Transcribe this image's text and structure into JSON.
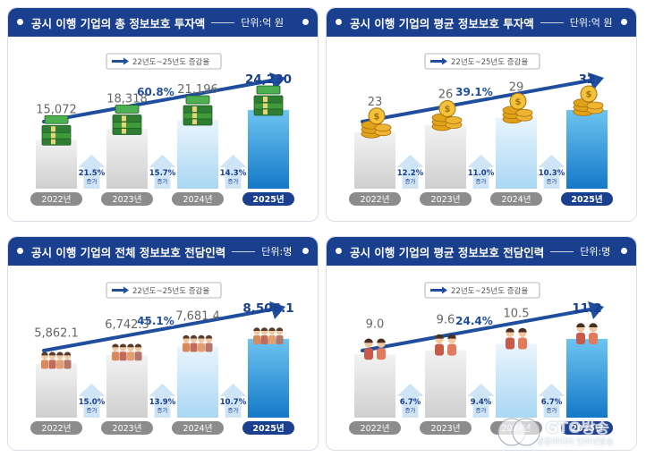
{
  "legend_text": "22년도~25년도 증감율",
  "chart_data": [
    {
      "type": "bar",
      "title": "공시 이행 기업의 총 정보보호 투자액",
      "unit": "단위:억 원",
      "categories": [
        "2022년",
        "2023년",
        "2024년",
        "2025년"
      ],
      "values": [
        15072,
        18318,
        21196,
        24230
      ],
      "value_labels": [
        "15,072",
        "18,318",
        "21,196",
        "24,230"
      ],
      "growth": [
        {
          "pct": "21.5%",
          "note": "증가"
        },
        {
          "pct": "15.7%",
          "note": "증가"
        },
        {
          "pct": "14.3%",
          "note": "증가"
        }
      ],
      "total_growth": "60.8%",
      "icon": "money-stack-icon",
      "ylim": [
        0,
        24230
      ]
    },
    {
      "type": "bar",
      "title": "공시 이행 기업의 평균 정보보호 투자액",
      "unit": "단위:억 원",
      "categories": [
        "2022년",
        "2023년",
        "2024년",
        "2025년"
      ],
      "values": [
        23,
        26,
        29,
        32
      ],
      "value_labels": [
        "23",
        "26",
        "29",
        "32"
      ],
      "growth": [
        {
          "pct": "12.2%",
          "note": "증가"
        },
        {
          "pct": "11.0%",
          "note": "증가"
        },
        {
          "pct": "10.3%",
          "note": "증가"
        }
      ],
      "total_growth": "39.1%",
      "icon": "coin-stack-icon",
      "ylim": [
        0,
        32
      ]
    },
    {
      "type": "bar",
      "title": "공시 이행 기업의 전체 정보보호 전담인력",
      "unit": "단위:명",
      "categories": [
        "2022년",
        "2023년",
        "2024년",
        "2025년"
      ],
      "values": [
        5862.1,
        6742.3,
        7681.4,
        8506.1
      ],
      "value_labels": [
        "5,862.1",
        "6,742.3",
        "7,681.4",
        "8,506.1"
      ],
      "growth": [
        {
          "pct": "15.0%",
          "note": "증가"
        },
        {
          "pct": "13.9%",
          "note": "증가"
        },
        {
          "pct": "10.7%",
          "note": "증가"
        }
      ],
      "total_growth": "45.1%",
      "icon": "people-group-icon",
      "ylim": [
        0,
        8506.1
      ]
    },
    {
      "type": "bar",
      "title": "공시 이행 기업의 평균 정보보호 전담인력",
      "unit": "단위:명",
      "categories": [
        "2022년",
        "2023년",
        "2024년",
        "2025년"
      ],
      "values": [
        9.0,
        9.6,
        10.5,
        11.2
      ],
      "value_labels": [
        "9.0",
        "9.6",
        "10.5",
        "11.2"
      ],
      "growth": [
        {
          "pct": "6.7%",
          "note": "증가"
        },
        {
          "pct": "9.4%",
          "note": "증가"
        },
        {
          "pct": "6.7%",
          "note": "증가"
        }
      ],
      "total_growth": "24.4%",
      "icon": "person-pair-icon",
      "ylim": [
        0,
        11.2
      ]
    }
  ],
  "watermark": {
    "text": "GTO방송",
    "sub": "종합미디어 인터넷방송"
  },
  "colors": {
    "header_bg": "#1a3f8f",
    "arrow": "#1f4e9e",
    "last_bar_top": "#6cc4f0",
    "last_bar_bottom": "#1579c9",
    "gray_bar": "#dcdcdc",
    "pill_gray": "#8c8c8c",
    "pill_last": "#1a3f8f"
  }
}
